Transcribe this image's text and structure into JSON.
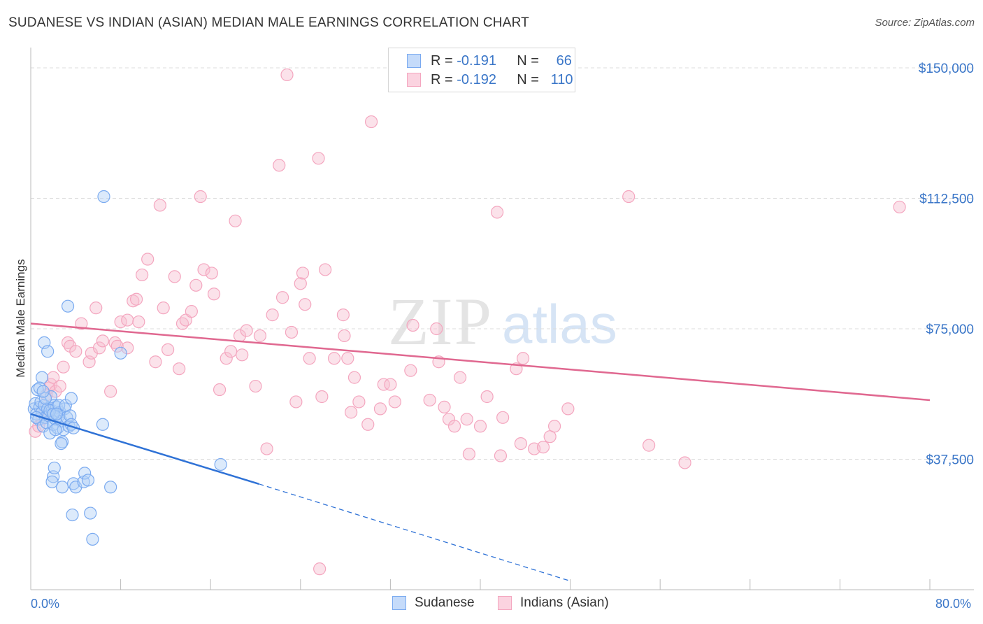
{
  "title": "SUDANESE VS INDIAN (ASIAN) MEDIAN MALE EARNINGS CORRELATION CHART",
  "source": "Source: ZipAtlas.com",
  "watermark": {
    "zip": "ZIP",
    "atlas": "atlas"
  },
  "legend_stats": [
    {
      "r_label": "R =",
      "r_value": "-0.191",
      "n_label": "N =",
      "n_value": "66",
      "color": "#7aaaf0"
    },
    {
      "r_label": "R =",
      "r_value": "-0.192",
      "n_label": "N =",
      "n_value": "110",
      "color": "#f4a6bf"
    }
  ],
  "bottom_legend": [
    {
      "label": "Sudanese",
      "color": "#7aaaf0"
    },
    {
      "label": "Indians (Asian)",
      "color": "#f4a6bf"
    }
  ],
  "chart_data": {
    "type": "scatter",
    "title": "SUDANESE VS INDIAN (ASIAN) MEDIAN MALE EARNINGS CORRELATION CHART",
    "xlabel": "",
    "ylabel": "Median Male Earnings",
    "xlim": [
      0,
      80
    ],
    "ylim": [
      0,
      155000
    ],
    "x_tick_labels": [
      "0.0%",
      "80.0%"
    ],
    "y_ticks": [
      37500,
      75000,
      112500,
      150000
    ],
    "y_tick_labels": [
      "$37,500",
      "$75,000",
      "$112,500",
      "$150,000"
    ],
    "grid": "horizontal-dashed",
    "legend_position": "top-center",
    "series": [
      {
        "name": "Sudanese",
        "color": "#7aaaf0",
        "line_color": "#2f72d6",
        "trend": {
          "x0": 0,
          "y0": 50500,
          "x1": 20.3,
          "y1": 30400,
          "dashed_to_x": 48,
          "dashed_to_y": 2500
        },
        "points": [
          [
            0.3,
            52000
          ],
          [
            0.4,
            53500
          ],
          [
            0.5,
            50500
          ],
          [
            0.6,
            57500
          ],
          [
            0.7,
            49000
          ],
          [
            0.8,
            52500
          ],
          [
            0.9,
            54000
          ],
          [
            1.0,
            51000
          ],
          [
            1.1,
            47000
          ],
          [
            1.2,
            53000
          ],
          [
            1.3,
            49500
          ],
          [
            1.4,
            48000
          ],
          [
            1.5,
            52000
          ],
          [
            1.6,
            50000
          ],
          [
            1.7,
            45000
          ],
          [
            1.8,
            55500
          ],
          [
            1.9,
            51500
          ],
          [
            2.0,
            47500
          ],
          [
            2.1,
            53000
          ],
          [
            2.2,
            49000
          ],
          [
            2.3,
            52500
          ],
          [
            2.4,
            46500
          ],
          [
            2.5,
            50000
          ],
          [
            2.6,
            51000
          ],
          [
            2.7,
            48500
          ],
          [
            2.8,
            42500
          ],
          [
            2.9,
            46000
          ],
          [
            3.0,
            52000
          ],
          [
            3.2,
            49500
          ],
          [
            3.4,
            47000
          ],
          [
            3.5,
            50000
          ],
          [
            3.6,
            47500
          ],
          [
            3.8,
            46500
          ],
          [
            1.0,
            61000
          ],
          [
            1.2,
            71000
          ],
          [
            1.5,
            68500
          ],
          [
            0.8,
            58000
          ],
          [
            1.3,
            55000
          ],
          [
            1.7,
            51500
          ],
          [
            2.0,
            50500
          ],
          [
            2.2,
            46000
          ],
          [
            2.5,
            53000
          ],
          [
            2.7,
            42000
          ],
          [
            3.1,
            53000
          ],
          [
            3.3,
            81500
          ],
          [
            3.6,
            55000
          ],
          [
            6.5,
            113000
          ],
          [
            6.4,
            47500
          ],
          [
            8.0,
            68000
          ],
          [
            2.0,
            32500
          ],
          [
            1.9,
            31000
          ],
          [
            2.1,
            35000
          ],
          [
            2.8,
            29500
          ],
          [
            3.8,
            30500
          ],
          [
            4.0,
            29500
          ],
          [
            4.7,
            31000
          ],
          [
            4.8,
            33500
          ],
          [
            5.1,
            31500
          ],
          [
            7.1,
            29500
          ],
          [
            3.7,
            21500
          ],
          [
            5.3,
            22000
          ],
          [
            5.5,
            14500
          ],
          [
            16.9,
            36000
          ],
          [
            1.1,
            57000
          ],
          [
            0.5,
            49500
          ],
          [
            2.3,
            50500
          ]
        ]
      },
      {
        "name": "Indians (Asian)",
        "color": "#f4a6bf",
        "line_color": "#e06890",
        "trend": {
          "x0": 0,
          "y0": 76500,
          "x1": 80,
          "y1": 54500
        },
        "points": [
          [
            0.4,
            45500
          ],
          [
            0.7,
            47000
          ],
          [
            1.0,
            49000
          ],
          [
            1.2,
            52000
          ],
          [
            1.4,
            56000
          ],
          [
            1.6,
            58000
          ],
          [
            1.8,
            59000
          ],
          [
            2.0,
            61000
          ],
          [
            2.2,
            57000
          ],
          [
            2.6,
            58500
          ],
          [
            2.9,
            64000
          ],
          [
            3.3,
            71000
          ],
          [
            3.5,
            70000
          ],
          [
            4.0,
            68500
          ],
          [
            4.5,
            76500
          ],
          [
            5.2,
            65500
          ],
          [
            5.4,
            68000
          ],
          [
            5.8,
            81000
          ],
          [
            6.1,
            69500
          ],
          [
            6.4,
            71500
          ],
          [
            7.1,
            57000
          ],
          [
            7.5,
            71000
          ],
          [
            7.7,
            70000
          ],
          [
            8.0,
            77000
          ],
          [
            8.6,
            77500
          ],
          [
            8.6,
            69500
          ],
          [
            9.1,
            83000
          ],
          [
            9.4,
            83500
          ],
          [
            9.6,
            77000
          ],
          [
            9.9,
            90500
          ],
          [
            10.4,
            95000
          ],
          [
            11.1,
            65500
          ],
          [
            11.5,
            110500
          ],
          [
            11.8,
            81000
          ],
          [
            12.2,
            69000
          ],
          [
            12.8,
            90000
          ],
          [
            13.2,
            63500
          ],
          [
            13.5,
            76500
          ],
          [
            13.8,
            77500
          ],
          [
            14.3,
            80000
          ],
          [
            14.7,
            87500
          ],
          [
            15.1,
            113000
          ],
          [
            15.4,
            92000
          ],
          [
            16.1,
            91000
          ],
          [
            16.3,
            85000
          ],
          [
            16.8,
            57500
          ],
          [
            17.4,
            66500
          ],
          [
            17.8,
            68500
          ],
          [
            18.2,
            106000
          ],
          [
            18.6,
            73000
          ],
          [
            18.8,
            67500
          ],
          [
            19.2,
            74500
          ],
          [
            20.0,
            58500
          ],
          [
            20.4,
            73000
          ],
          [
            21.0,
            40500
          ],
          [
            21.5,
            79000
          ],
          [
            22.1,
            122000
          ],
          [
            22.4,
            84000
          ],
          [
            22.8,
            148000
          ],
          [
            23.2,
            74000
          ],
          [
            23.6,
            54000
          ],
          [
            24.0,
            88000
          ],
          [
            24.2,
            91000
          ],
          [
            24.4,
            82000
          ],
          [
            24.8,
            66500
          ],
          [
            25.6,
            124000
          ],
          [
            25.9,
            55500
          ],
          [
            26.2,
            92000
          ],
          [
            27.0,
            66500
          ],
          [
            27.8,
            79000
          ],
          [
            27.9,
            73000
          ],
          [
            28.2,
            66500
          ],
          [
            28.5,
            51000
          ],
          [
            28.8,
            61000
          ],
          [
            29.2,
            54000
          ],
          [
            30.0,
            47500
          ],
          [
            30.3,
            134500
          ],
          [
            31.1,
            52000
          ],
          [
            31.4,
            59000
          ],
          [
            32.0,
            59000
          ],
          [
            32.4,
            54000
          ],
          [
            33.8,
            63000
          ],
          [
            34.0,
            76000
          ],
          [
            35.5,
            54500
          ],
          [
            36.1,
            75000
          ],
          [
            36.3,
            65500
          ],
          [
            36.8,
            52500
          ],
          [
            37.2,
            49000
          ],
          [
            37.7,
            47000
          ],
          [
            38.2,
            61000
          ],
          [
            38.8,
            49000
          ],
          [
            39.0,
            39000
          ],
          [
            40.0,
            47000
          ],
          [
            40.6,
            55500
          ],
          [
            41.5,
            108500
          ],
          [
            41.8,
            38500
          ],
          [
            42.0,
            49500
          ],
          [
            43.2,
            63500
          ],
          [
            43.6,
            42000
          ],
          [
            43.8,
            66500
          ],
          [
            44.8,
            40500
          ],
          [
            45.6,
            41000
          ],
          [
            46.2,
            44000
          ],
          [
            46.6,
            47000
          ],
          [
            47.8,
            52000
          ],
          [
            53.2,
            113000
          ],
          [
            55.0,
            41500
          ],
          [
            58.2,
            36500
          ],
          [
            25.7,
            6000
          ],
          [
            77.3,
            110000
          ]
        ]
      }
    ]
  }
}
